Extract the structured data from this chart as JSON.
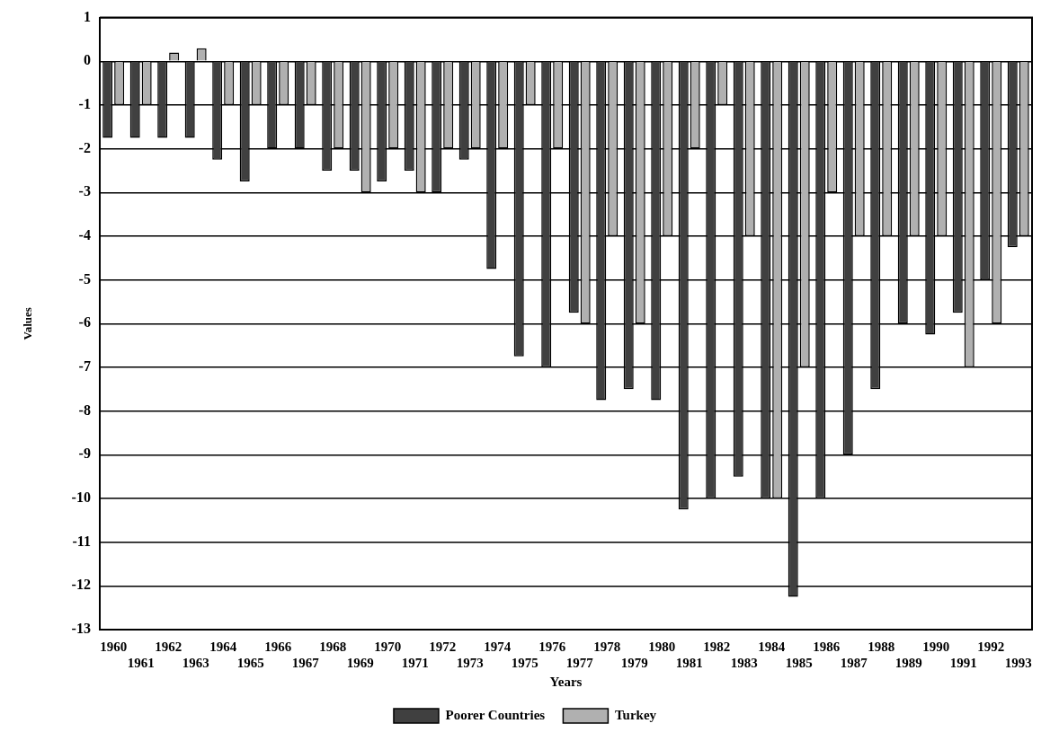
{
  "chart_data": {
    "type": "bar",
    "xlabel": "Years",
    "ylabel": "Values",
    "categories": [
      "1960",
      "1961",
      "1962",
      "1963",
      "1964",
      "1965",
      "1966",
      "1967",
      "1968",
      "1969",
      "1970",
      "1971",
      "1972",
      "1973",
      "1974",
      "1975",
      "1976",
      "1977",
      "1978",
      "1979",
      "1980",
      "1981",
      "1982",
      "1983",
      "1984",
      "1985",
      "1986",
      "1987",
      "1988",
      "1989",
      "1990",
      "1991",
      "1992",
      "1993"
    ],
    "series": [
      {
        "name": "Poorer Countries",
        "color": "#404040",
        "values": [
          -1.75,
          -1.75,
          -1.75,
          -1.75,
          -2.25,
          -2.75,
          -2,
          -2,
          -2.5,
          -2.5,
          -2.75,
          -2.5,
          -3,
          -2.25,
          -4.75,
          -6.75,
          -7,
          -5.75,
          -7.75,
          -7.5,
          -7.75,
          -10.25,
          -10,
          -9.5,
          -10,
          -12.25,
          -10,
          -9,
          -7.5,
          -6,
          -6.25,
          -5.75,
          -5,
          -4.25
        ]
      },
      {
        "name": "Turkey",
        "color": "#b0b0b0",
        "values": [
          -1,
          -1,
          0.2,
          0.3,
          -1,
          -1,
          -1,
          -1,
          -2,
          -3,
          -2,
          -3,
          -2,
          -2,
          -2,
          -1,
          -2,
          -6,
          -4,
          -6,
          -4,
          -2,
          -1,
          -4,
          -10,
          -7,
          -3,
          -4,
          -4,
          -4,
          -4,
          -7,
          -6,
          -4
        ]
      }
    ],
    "ylim": [
      -13,
      1
    ],
    "yticks": [
      -13,
      -12,
      -11,
      -10,
      -9,
      -8,
      -7,
      -6,
      -5,
      -4,
      -3,
      -2,
      -1,
      0,
      1
    ],
    "grid": "y",
    "legend": "bottom"
  }
}
